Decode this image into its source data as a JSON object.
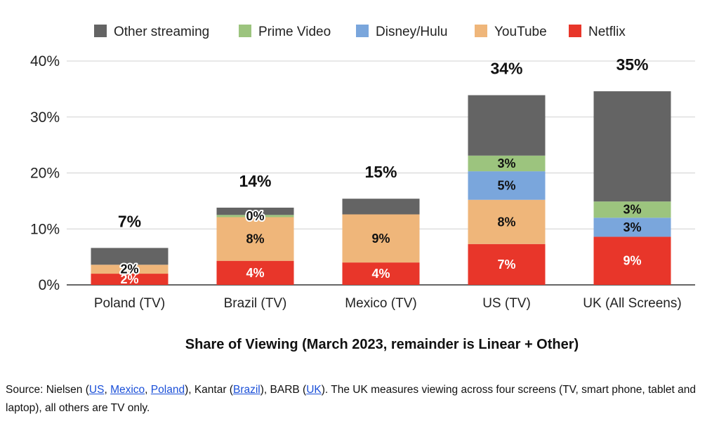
{
  "chart_data": {
    "type": "bar",
    "stacked": true,
    "categories": [
      "Poland (TV)",
      "Brazil (TV)",
      "Mexico (TV)",
      "US (TV)",
      "UK (All Screens)"
    ],
    "series": [
      {
        "name": "Netflix",
        "color": "#e8362a",
        "values": [
          2,
          4.3,
          4,
          7.3,
          8.6
        ],
        "labels": [
          "2%",
          "4%",
          "4%",
          "7%",
          "9%"
        ]
      },
      {
        "name": "YouTube",
        "color": "#efb67a",
        "values": [
          1.6,
          7.8,
          8.6,
          7.9,
          0
        ],
        "labels": [
          "2%",
          "8%",
          "9%",
          "8%",
          ""
        ]
      },
      {
        "name": "Disney/Hulu",
        "color": "#7aa6dc",
        "values": [
          0,
          0,
          0,
          5.1,
          3.4
        ],
        "labels": [
          "",
          "",
          "",
          "5%",
          "3%"
        ]
      },
      {
        "name": "Prime Video",
        "color": "#9cc47e",
        "values": [
          0,
          0.4,
          0,
          2.8,
          2.9
        ],
        "labels": [
          "",
          "0%",
          "",
          "3%",
          "3%"
        ]
      },
      {
        "name": "Other streaming",
        "color": "#646464",
        "values": [
          3,
          1.3,
          2.8,
          10.8,
          19.7
        ],
        "labels": [
          "",
          "",
          "",
          "",
          ""
        ]
      }
    ],
    "totals": [
      "7%",
      "14%",
      "15%",
      "34%",
      "35%"
    ],
    "ylim": [
      0,
      40
    ],
    "yticks": [
      "0%",
      "10%",
      "20%",
      "30%",
      "40%"
    ],
    "ytick_values": [
      0,
      10,
      20,
      30,
      40
    ],
    "grid": true,
    "legend_position": "top",
    "legend_order": [
      "Other streaming",
      "Prime Video",
      "Disney/Hulu",
      "YouTube",
      "Netflix"
    ],
    "xlabel": "Share of Viewing (March 2023, remainder is Linear + Other)"
  },
  "source": {
    "prefix": "Source: Nielsen (",
    "us_link": "US",
    "sep1": ", ",
    "mexico_link": "Mexico",
    "sep2": ", ",
    "poland_link": "Poland",
    "mid1": "), Kantar (",
    "brazil_link": "Brazil",
    "mid2": "), BARB (",
    "uk_link": "UK",
    "suffix": "). The UK measures viewing across four screens (TV, smart phone, tablet and laptop), all others are TV only."
  }
}
